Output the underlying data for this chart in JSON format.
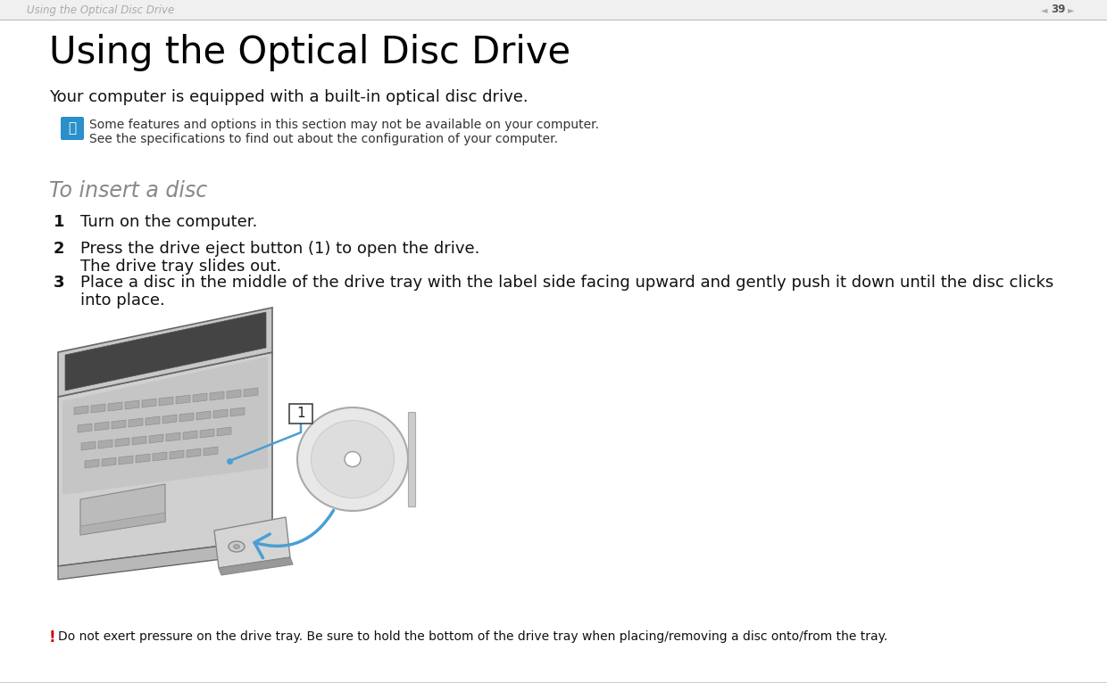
{
  "bg_color": "#ffffff",
  "header_bg": "#f0f0f0",
  "header_text": "Using the Optical Disc Drive",
  "header_text_color": "#aaaaaa",
  "header_page_num": "39",
  "separator_color": "#bbbbbb",
  "title": "Using the Optical Disc Drive",
  "title_color": "#000000",
  "title_fontsize": 30,
  "intro_text": "Your computer is equipped with a built-in optical disc drive.",
  "intro_fontsize": 13,
  "note_icon_color": "#2a8fca",
  "note_lines": [
    "Some features and options in this section may not be available on your computer.",
    "See the specifications to find out about the configuration of your computer."
  ],
  "note_fontsize": 10,
  "section_heading": "To insert a disc",
  "section_heading_color": "#888888",
  "section_heading_fontsize": 17,
  "steps": [
    {
      "num": "1",
      "lines": [
        "Turn on the computer."
      ]
    },
    {
      "num": "2",
      "lines": [
        "Press the drive eject button (1) to open the drive.",
        "The drive tray slides out."
      ]
    },
    {
      "num": "3",
      "lines": [
        "Place a disc in the middle of the drive tray with the label side facing upward and gently push it down until the disc clicks",
        "into place."
      ]
    }
  ],
  "step_fontsize": 13,
  "warning_icon_color": "#cc0000",
  "warning_text": "Do not exert pressure on the drive tray. Be sure to hold the bottom of the drive tray when placing/removing a disc onto/from the tray.",
  "warning_fontsize": 10,
  "callout_line_color": "#4a9fd4",
  "arrow_color": "#4a9fd4"
}
